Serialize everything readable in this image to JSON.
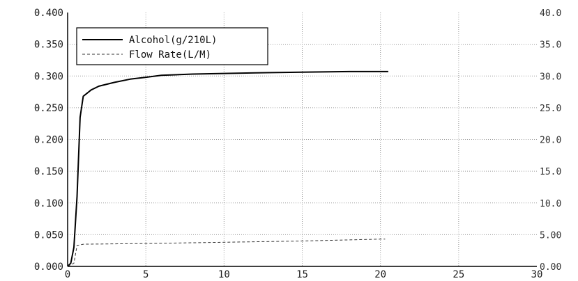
{
  "chart_data": {
    "type": "line",
    "title": "",
    "xlabel": "",
    "ylabel": "",
    "y2label": "",
    "xlim": [
      0,
      30
    ],
    "ylim": [
      0,
      0.4
    ],
    "y2lim": [
      0,
      40
    ],
    "x_ticks": [
      "0",
      "5",
      "10",
      "15",
      "20",
      "25",
      "30"
    ],
    "y_ticks": [
      "0.000",
      "0.050",
      "0.100",
      "0.150",
      "0.200",
      "0.250",
      "0.300",
      "0.350",
      "0.400"
    ],
    "y2_ticks": [
      "0.00",
      "5.00",
      "10.0",
      "15.0",
      "20.0",
      "25.0",
      "30.0",
      "35.0",
      "40.0"
    ],
    "grid": true,
    "legend_position": "top-left",
    "series": [
      {
        "name": "Alcohol(g/210L)",
        "axis": "left",
        "style": "solid",
        "color": "#000000",
        "x": [
          0,
          0.2,
          0.4,
          0.6,
          0.8,
          1.0,
          1.2,
          1.5,
          2,
          3,
          4,
          5,
          6,
          8,
          10,
          12,
          15,
          18,
          20,
          20.5
        ],
        "y": [
          0,
          0.005,
          0.03,
          0.11,
          0.235,
          0.268,
          0.272,
          0.278,
          0.284,
          0.29,
          0.295,
          0.298,
          0.301,
          0.303,
          0.304,
          0.305,
          0.306,
          0.307,
          0.307,
          0.307
        ]
      },
      {
        "name": "Flow Rate(L/M)",
        "axis": "right",
        "style": "dashed",
        "color": "#333333",
        "x": [
          0,
          0.4,
          0.6,
          1,
          5,
          10,
          15,
          20,
          20.3
        ],
        "y": [
          0,
          0.5,
          3.3,
          3.5,
          3.6,
          3.8,
          4.0,
          4.3,
          4.3
        ]
      }
    ]
  }
}
